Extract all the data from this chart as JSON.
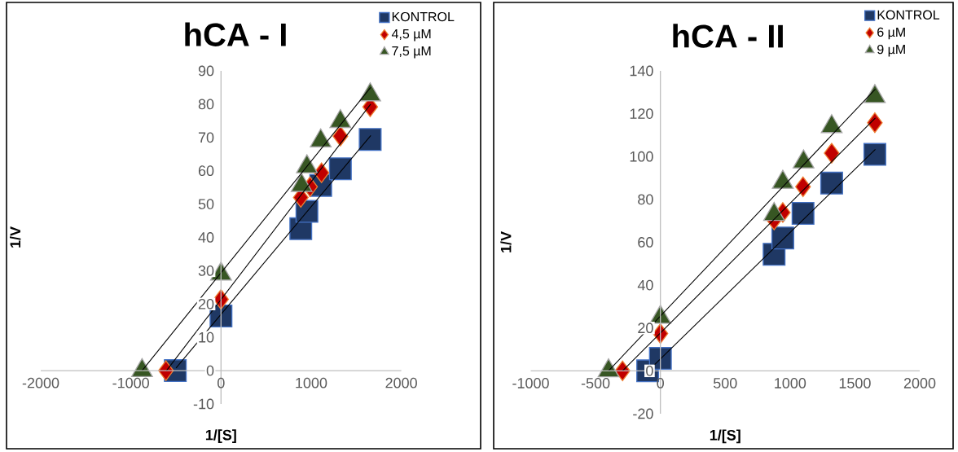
{
  "chart_data": [
    {
      "type": "scatter",
      "title": "hCA - I",
      "xlabel": "1/[S]",
      "ylabel": "1/V",
      "xlim": [
        -2000,
        2000
      ],
      "ylim": [
        -10,
        90
      ],
      "xticks": [
        -2000,
        -1000,
        0,
        1000,
        2000
      ],
      "yticks": [
        -10,
        0,
        10,
        20,
        30,
        40,
        50,
        60,
        70,
        80,
        90
      ],
      "legend": "top right",
      "series": [
        {
          "name": "KONTROL",
          "color": "#1f3864",
          "marker": "square",
          "x": [
            -507,
            0,
            885,
            953,
            1106,
            1324,
            1655
          ],
          "values": [
            0,
            16.4,
            42.6,
            47.8,
            55.6,
            60.6,
            69.4
          ]
        },
        {
          "name": "4,5 µM",
          "color": "#c00000",
          "marker": "diamond",
          "x": [
            -611,
            0,
            885,
            988,
            1115,
            1324,
            1655
          ],
          "values": [
            0,
            21.4,
            52,
            55.2,
            59.4,
            70.4,
            79.2
          ]
        },
        {
          "name": "7,5 µM",
          "color": "#375623",
          "marker": "triangle",
          "x": [
            -876,
            0,
            894,
            953,
            1106,
            1324,
            1655
          ],
          "values": [
            0,
            29,
            55.6,
            61.2,
            69,
            74.8,
            82.8
          ]
        },
        {
          "type": "line",
          "color": "#000000",
          "x": [
            -499,
            1662
          ],
          "values": [
            0.8,
            70.6
          ]
        },
        {
          "type": "line",
          "color": "#000000",
          "x": [
            -605,
            1660
          ],
          "values": [
            0,
            80
          ]
        },
        {
          "type": "line",
          "color": "#000000",
          "x": [
            -876,
            1660
          ],
          "values": [
            0,
            85
          ]
        }
      ]
    },
    {
      "type": "scatter",
      "title": "hCA - II",
      "xlabel": "1/[S]",
      "ylabel": "1/V",
      "xlim": [
        -1000,
        2000
      ],
      "ylim": [
        -20,
        140
      ],
      "xticks": [
        -1000,
        -500,
        0,
        500,
        1000,
        1500,
        2000
      ],
      "yticks": [
        -20,
        0,
        20,
        40,
        60,
        80,
        100,
        120,
        140
      ],
      "legend": "top right",
      "series": [
        {
          "name": "KONTROL",
          "color": "#1f3864",
          "marker": "square",
          "x": [
            -98,
            0,
            877,
            944,
            1100,
            1321,
            1654
          ],
          "values": [
            0,
            5.8,
            54.4,
            62,
            73.5,
            87.6,
            101
          ]
        },
        {
          "name": "6 µM",
          "color": "#c00000",
          "marker": "diamond",
          "x": [
            -292,
            0,
            877,
            944,
            1100,
            1321,
            1654
          ],
          "values": [
            0,
            17.4,
            70.4,
            73.9,
            85.9,
            101.6,
            115.8
          ]
        },
        {
          "name": "9 µM",
          "color": "#375623",
          "marker": "triangle",
          "x": [
            -400,
            0,
            877,
            944,
            1104,
            1321,
            1654
          ],
          "values": [
            0,
            25,
            73,
            88,
            97.5,
            114,
            128
          ]
        },
        {
          "type": "line",
          "color": "#000000",
          "x": [
            -94,
            1658
          ],
          "values": [
            0,
            103.4
          ]
        },
        {
          "type": "line",
          "color": "#000000",
          "x": [
            -292,
            1658
          ],
          "values": [
            0,
            118
          ]
        },
        {
          "type": "line",
          "color": "#000000",
          "x": [
            -400,
            1658
          ],
          "values": [
            0,
            131.5
          ]
        }
      ]
    }
  ]
}
